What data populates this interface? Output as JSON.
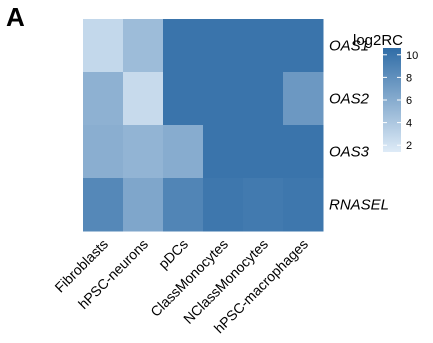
{
  "panel_label": "A",
  "chart_data": {
    "type": "heatmap",
    "rows": [
      "OAS1",
      "OAS2",
      "OAS3",
      "RNASEL"
    ],
    "columns": [
      "Fibroblasts",
      "hPSC-neurons",
      "pDCs",
      "ClassMonocytes",
      "NClassMonocytes",
      "hPSC-macrophages"
    ],
    "values": [
      [
        2.8,
        4.8,
        10.0,
        10.0,
        10.0,
        10.0
      ],
      [
        5.6,
        2.6,
        10.0,
        10.0,
        10.0,
        7.4
      ],
      [
        5.8,
        5.4,
        6.0,
        10.0,
        10.0,
        10.0
      ],
      [
        8.6,
        6.4,
        8.8,
        9.8,
        9.6,
        9.8
      ]
    ],
    "legend": {
      "title": "log2RC",
      "ticks": [
        2,
        4,
        6,
        8,
        10
      ],
      "range": [
        1.4,
        10.6
      ],
      "low_color": "#deebf7",
      "high_color": "#2f6ca6"
    },
    "row_label_style": "italic",
    "grid": false
  }
}
